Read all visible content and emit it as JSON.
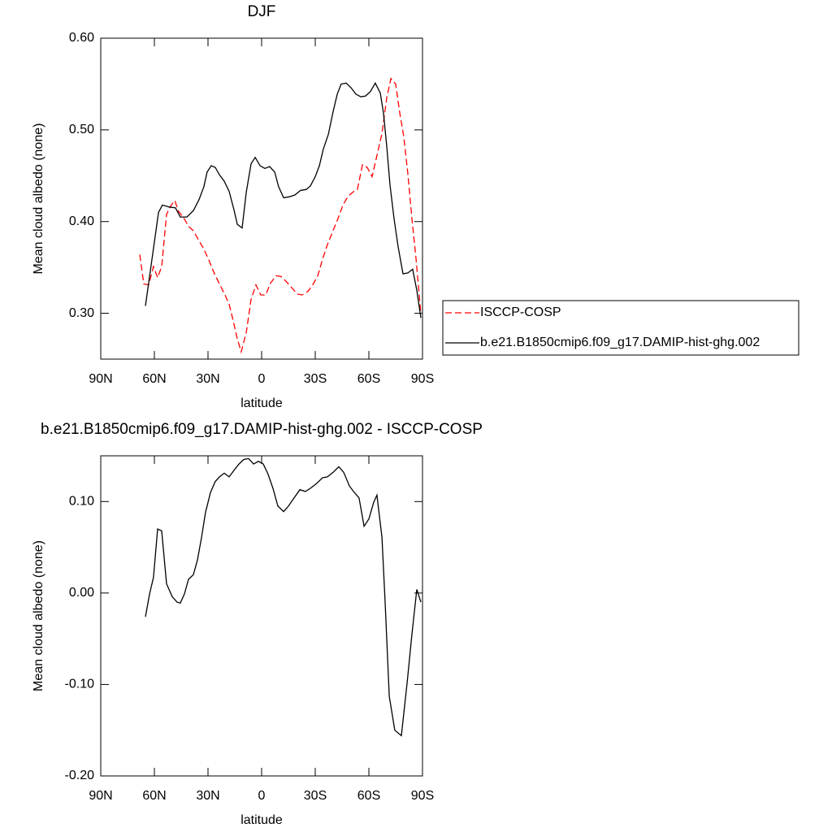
{
  "chart_data": [
    {
      "type": "line",
      "title": "DJF",
      "x_label": "latitude",
      "y_label": "Mean cloud albedo (none)",
      "xlim": [
        90,
        -90
      ],
      "ylim": [
        0.25,
        0.6
      ],
      "xticks": [
        {
          "value": 90,
          "label": "90N"
        },
        {
          "value": 60,
          "label": "60N"
        },
        {
          "value": 30,
          "label": "30N"
        },
        0,
        {
          "value": -30,
          "label": "30S"
        },
        {
          "value": -60,
          "label": "60S"
        },
        {
          "value": -90,
          "label": "90S"
        }
      ],
      "yticks": [
        {
          "value": 0.3,
          "label": "0.30"
        },
        {
          "value": 0.4,
          "label": "0.40"
        },
        {
          "value": 0.5,
          "label": "0.50"
        },
        {
          "value": 0.6,
          "label": "0.60"
        }
      ],
      "legend": "right",
      "series": [
        {
          "name": "ISCCP-COSP",
          "color": "#ff0000",
          "line_style": "dashed",
          "x": [
            68.2,
            65.9,
            63.2,
            60.5,
            58.2,
            55.9,
            53.2,
            50.9,
            48.6,
            46.4,
            43.6,
            40.9,
            38.2,
            35.0,
            32.3,
            29.5,
            26.8,
            23.6,
            20.5,
            18.2,
            15.9,
            13.6,
            11.4,
            8.6,
            5.9,
            3.2,
            0.5,
            -2.3,
            -5.0,
            -8.2,
            -10.9,
            -13.6,
            -16.8,
            -20.0,
            -22.7,
            -25.9,
            -28.6,
            -31.4,
            -34.1,
            -36.8,
            -39.5,
            -42.7,
            -45.5,
            -48.2,
            -50.9,
            -53.6,
            -56.4,
            -59.1,
            -61.8,
            -64.5,
            -67.3,
            -70.0,
            -72.3,
            -75.0,
            -77.3,
            -79.5,
            -81.8,
            -84.1,
            -86.4,
            -89.1
          ],
          "values": [
            0.364,
            0.332,
            0.331,
            0.351,
            0.339,
            0.351,
            0.408,
            0.417,
            0.423,
            0.411,
            0.404,
            0.395,
            0.39,
            0.379,
            0.37,
            0.358,
            0.345,
            0.332,
            0.32,
            0.31,
            0.292,
            0.272,
            0.258,
            0.279,
            0.315,
            0.331,
            0.32,
            0.32,
            0.333,
            0.341,
            0.34,
            0.335,
            0.328,
            0.321,
            0.32,
            0.324,
            0.331,
            0.341,
            0.359,
            0.375,
            0.388,
            0.403,
            0.418,
            0.427,
            0.432,
            0.435,
            0.462,
            0.459,
            0.449,
            0.472,
            0.496,
            0.535,
            0.556,
            0.55,
            0.518,
            0.493,
            0.452,
            0.403,
            0.359,
            0.299
          ]
        },
        {
          "name": "b.e21.B1850cmip6.f09_g17.DAMIP-hist-ghg.002",
          "color": "#000000",
          "line_style": "solid",
          "x": [
            65.0,
            57.7,
            55.5,
            51.8,
            48.2,
            45.5,
            41.8,
            38.2,
            35.0,
            32.3,
            30.5,
            28.2,
            25.9,
            23.6,
            20.9,
            18.2,
            15.5,
            13.6,
            10.9,
            8.6,
            5.9,
            3.6,
            0.9,
            -1.8,
            -4.5,
            -7.3,
            -9.5,
            -12.3,
            -15.5,
            -18.6,
            -21.8,
            -25.0,
            -27.3,
            -30.0,
            -32.3,
            -34.5,
            -37.3,
            -40.0,
            -42.3,
            -44.5,
            -47.3,
            -50.0,
            -52.7,
            -55.5,
            -58.2,
            -60.9,
            -63.6,
            -66.4,
            -68.2,
            -70.0,
            -71.8,
            -74.1,
            -76.4,
            -79.1,
            -81.8,
            -84.5,
            -86.8,
            -89.1
          ],
          "values": [
            0.308,
            0.41,
            0.418,
            0.416,
            0.415,
            0.405,
            0.405,
            0.412,
            0.424,
            0.438,
            0.454,
            0.461,
            0.459,
            0.451,
            0.444,
            0.433,
            0.413,
            0.397,
            0.393,
            0.432,
            0.463,
            0.47,
            0.461,
            0.458,
            0.46,
            0.454,
            0.438,
            0.426,
            0.427,
            0.429,
            0.434,
            0.435,
            0.439,
            0.449,
            0.461,
            0.479,
            0.495,
            0.52,
            0.539,
            0.55,
            0.551,
            0.546,
            0.539,
            0.536,
            0.537,
            0.542,
            0.551,
            0.54,
            0.518,
            0.482,
            0.44,
            0.403,
            0.372,
            0.343,
            0.344,
            0.348,
            0.325,
            0.295
          ]
        }
      ]
    },
    {
      "type": "line",
      "title": "b.e21.B1850cmip6.f09_g17.DAMIP-hist-ghg.002 - ISCCP-COSP",
      "x_label": "latitude",
      "y_label": "Mean cloud albedo (none)",
      "xlim": [
        90,
        -90
      ],
      "ylim": [
        -0.2,
        0.15
      ],
      "xticks": [
        {
          "value": 90,
          "label": "90N"
        },
        {
          "value": 60,
          "label": "60N"
        },
        {
          "value": 30,
          "label": "30N"
        },
        0,
        {
          "value": -30,
          "label": "30S"
        },
        {
          "value": -60,
          "label": "60S"
        },
        {
          "value": -90,
          "label": "90S"
        }
      ],
      "yticks": [
        {
          "value": -0.2,
          "label": "-0.20"
        },
        {
          "value": -0.1,
          "label": "-0.10"
        },
        {
          "value": 0,
          "label": "0.00"
        },
        {
          "value": 0.1,
          "label": "0.10"
        }
      ],
      "series": [
        {
          "color": "#000000",
          "line_style": "solid",
          "x": [
            65.0,
            62.7,
            60.5,
            58.2,
            55.9,
            53.2,
            50.0,
            47.3,
            45.5,
            43.2,
            40.9,
            38.2,
            35.9,
            33.6,
            31.4,
            28.6,
            25.9,
            23.6,
            20.9,
            18.2,
            15.5,
            12.7,
            10.0,
            7.3,
            4.5,
            1.8,
            -0.9,
            -3.6,
            -6.4,
            -9.1,
            -12.3,
            -15.0,
            -18.2,
            -21.4,
            -24.5,
            -27.7,
            -30.9,
            -34.1,
            -36.8,
            -40.0,
            -43.2,
            -45.9,
            -49.1,
            -51.8,
            -54.5,
            -57.3,
            -60.0,
            -62.7,
            -64.5,
            -67.3,
            -69.1,
            -71.4,
            -74.5,
            -78.2,
            -81.4,
            -84.1,
            -86.8,
            -89.1
          ],
          "values": [
            -0.026,
            -0.001,
            0.017,
            0.07,
            0.068,
            0.01,
            -0.004,
            -0.01,
            -0.011,
            -0.001,
            0.015,
            0.02,
            0.036,
            0.061,
            0.088,
            0.11,
            0.122,
            0.127,
            0.131,
            0.127,
            0.134,
            0.141,
            0.146,
            0.147,
            0.141,
            0.144,
            0.141,
            0.13,
            0.114,
            0.095,
            0.089,
            0.095,
            0.104,
            0.113,
            0.111,
            0.115,
            0.12,
            0.126,
            0.127,
            0.132,
            0.138,
            0.132,
            0.117,
            0.11,
            0.104,
            0.073,
            0.081,
            0.099,
            0.107,
            0.061,
            -0.01,
            -0.113,
            -0.15,
            -0.156,
            -0.098,
            -0.045,
            0.004,
            -0.01
          ]
        }
      ]
    }
  ]
}
